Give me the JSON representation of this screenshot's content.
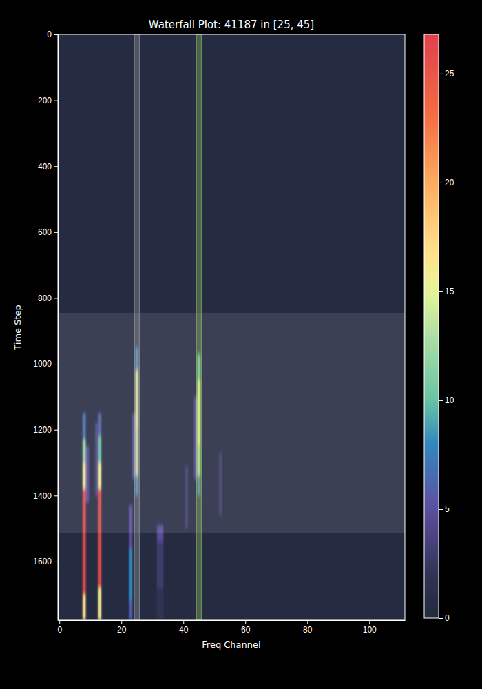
{
  "chart_data": {
    "type": "heatmap",
    "title": "Waterfall Plot: 41187 in [25, 45]",
    "x_label": "Freq Channel",
    "y_label": "Time Step",
    "xlim": [
      -0.5,
      111.5
    ],
    "xticks": [
      0,
      20,
      40,
      60,
      80,
      100
    ],
    "ylim": [
      1778,
      0
    ],
    "yticks": [
      0,
      200,
      400,
      600,
      800,
      1000,
      1200,
      1400,
      1600
    ],
    "background_value": 0.3,
    "cells": [
      {
        "channel": 8,
        "t0": 1150,
        "t1": 1230,
        "value": 7
      },
      {
        "channel": 8,
        "t0": 1230,
        "t1": 1300,
        "value": 12
      },
      {
        "channel": 8,
        "t0": 1300,
        "t1": 1380,
        "value": 16
      },
      {
        "channel": 8,
        "t0": 1380,
        "t1": 1700,
        "value": 26
      },
      {
        "channel": 8,
        "t0": 1700,
        "t1": 1778,
        "value": 17
      },
      {
        "channel": 9,
        "t0": 1250,
        "t1": 1420,
        "value": 5
      },
      {
        "channel": 13,
        "t0": 1150,
        "t1": 1220,
        "value": 6
      },
      {
        "channel": 13,
        "t0": 1220,
        "t1": 1300,
        "value": 10
      },
      {
        "channel": 13,
        "t0": 1300,
        "t1": 1380,
        "value": 16
      },
      {
        "channel": 13,
        "t0": 1380,
        "t1": 1680,
        "value": 26
      },
      {
        "channel": 13,
        "t0": 1680,
        "t1": 1778,
        "value": 16
      },
      {
        "channel": 12,
        "t0": 1180,
        "t1": 1400,
        "value": 4
      },
      {
        "channel": 23,
        "t0": 1430,
        "t1": 1560,
        "value": 5
      },
      {
        "channel": 23,
        "t0": 1560,
        "t1": 1720,
        "value": 8
      },
      {
        "channel": 23,
        "t0": 1720,
        "t1": 1778,
        "value": 6
      },
      {
        "channel": 24,
        "t0": 1150,
        "t1": 1350,
        "value": 5
      },
      {
        "channel": 25,
        "t0": 950,
        "t1": 1020,
        "value": 8
      },
      {
        "channel": 25,
        "t0": 1020,
        "t1": 1200,
        "value": 15
      },
      {
        "channel": 25,
        "t0": 1200,
        "t1": 1340,
        "value": 14
      },
      {
        "channel": 25,
        "t0": 1340,
        "t1": 1400,
        "value": 8
      },
      {
        "channel": 32,
        "t0": 1490,
        "t1": 1540,
        "value": 5
      },
      {
        "channel": 32,
        "t0": 1540,
        "t1": 1680,
        "value": 3
      },
      {
        "channel": 32,
        "t0": 1680,
        "t1": 1778,
        "value": 2
      },
      {
        "channel": 33,
        "t0": 1490,
        "t1": 1540,
        "value": 5
      },
      {
        "channel": 33,
        "t0": 1540,
        "t1": 1680,
        "value": 3
      },
      {
        "channel": 33,
        "t0": 1680,
        "t1": 1778,
        "value": 2
      },
      {
        "channel": 41,
        "t0": 1310,
        "t1": 1500,
        "value": 3
      },
      {
        "channel": 44,
        "t0": 1100,
        "t1": 1350,
        "value": 5
      },
      {
        "channel": 45,
        "t0": 970,
        "t1": 1050,
        "value": 10
      },
      {
        "channel": 45,
        "t0": 1050,
        "t1": 1250,
        "value": 15
      },
      {
        "channel": 45,
        "t0": 1250,
        "t1": 1340,
        "value": 13
      },
      {
        "channel": 45,
        "t0": 1340,
        "t1": 1400,
        "value": 7
      },
      {
        "channel": 52,
        "t0": 1270,
        "t1": 1460,
        "value": 3
      }
    ],
    "colorbar": {
      "range": [
        0,
        26.8
      ],
      "ticks": [
        0,
        5,
        10,
        15,
        20,
        25
      ]
    },
    "highlight_channels": [
      {
        "value": 25,
        "color": "#b0b0b0"
      },
      {
        "value": 45,
        "color": "#a6d96a"
      }
    ],
    "highlight_time": [
      847,
      1513
    ]
  }
}
